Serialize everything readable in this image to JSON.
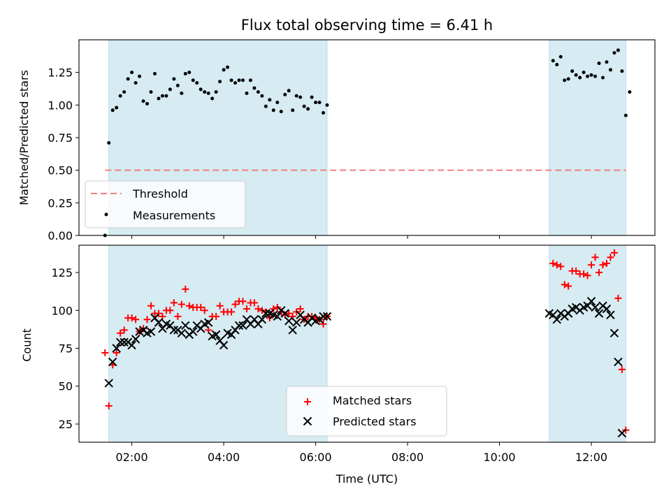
{
  "title": "Flux total observing time = 6.41 h",
  "xlabel": "Time (UTC)",
  "x_ticks": [
    "02:00",
    "04:00",
    "06:00",
    "08:00",
    "10:00",
    "12:00"
  ],
  "chart_data": [
    {
      "type": "scatter",
      "ylabel": "Matched/Predicted stars",
      "xlim": [
        "00:51",
        "13:23"
      ],
      "ylim": [
        0,
        1.5
      ],
      "y_ticks": [
        "0.00",
        "0.25",
        "0.50",
        "0.75",
        "1.00",
        "1.25"
      ],
      "observing_windows": [
        [
          "01:30",
          "06:15"
        ],
        [
          "11:05",
          "12:45"
        ]
      ],
      "threshold": {
        "name": "Threshold",
        "value": 0.5,
        "x_range": [
          "01:25",
          "12:45"
        ],
        "color": "#f08080"
      },
      "series": [
        {
          "name": "Measurements",
          "color": "#000000",
          "points": [
            [
              "01:25",
              0.0
            ],
            [
              "01:30",
              0.71
            ],
            [
              "01:35",
              0.96
            ],
            [
              "01:40",
              0.98
            ],
            [
              "01:45",
              1.07
            ],
            [
              "01:50",
              1.1
            ],
            [
              "01:55",
              1.2
            ],
            [
              "02:00",
              1.25
            ],
            [
              "02:05",
              1.17
            ],
            [
              "02:10",
              1.22
            ],
            [
              "02:15",
              1.03
            ],
            [
              "02:20",
              1.01
            ],
            [
              "02:25",
              1.1
            ],
            [
              "02:30",
              1.24
            ],
            [
              "02:35",
              1.05
            ],
            [
              "02:40",
              1.07
            ],
            [
              "02:45",
              1.07
            ],
            [
              "02:50",
              1.12
            ],
            [
              "02:55",
              1.2
            ],
            [
              "03:00",
              1.15
            ],
            [
              "03:05",
              1.09
            ],
            [
              "03:10",
              1.24
            ],
            [
              "03:15",
              1.25
            ],
            [
              "03:20",
              1.19
            ],
            [
              "03:25",
              1.17
            ],
            [
              "03:30",
              1.12
            ],
            [
              "03:35",
              1.1
            ],
            [
              "03:40",
              1.09
            ],
            [
              "03:45",
              1.05
            ],
            [
              "03:50",
              1.1
            ],
            [
              "03:55",
              1.18
            ],
            [
              "04:00",
              1.27
            ],
            [
              "04:05",
              1.29
            ],
            [
              "04:10",
              1.19
            ],
            [
              "04:15",
              1.17
            ],
            [
              "04:20",
              1.19
            ],
            [
              "04:25",
              1.19
            ],
            [
              "04:30",
              1.09
            ],
            [
              "04:35",
              1.19
            ],
            [
              "04:40",
              1.13
            ],
            [
              "04:45",
              1.1
            ],
            [
              "04:50",
              1.07
            ],
            [
              "04:55",
              0.99
            ],
            [
              "05:00",
              1.04
            ],
            [
              "05:05",
              0.96
            ],
            [
              "05:10",
              1.02
            ],
            [
              "05:15",
              0.95
            ],
            [
              "05:20",
              1.08
            ],
            [
              "05:25",
              1.11
            ],
            [
              "05:30",
              0.96
            ],
            [
              "05:35",
              1.07
            ],
            [
              "05:40",
              1.06
            ],
            [
              "05:45",
              0.99
            ],
            [
              "05:50",
              0.97
            ],
            [
              "05:55",
              1.06
            ],
            [
              "06:00",
              1.02
            ],
            [
              "06:05",
              1.02
            ],
            [
              "06:10",
              0.94
            ],
            [
              "06:15",
              1.0
            ],
            [
              "11:10",
              1.34
            ],
            [
              "11:15",
              1.31
            ],
            [
              "11:20",
              1.37
            ],
            [
              "11:25",
              1.19
            ],
            [
              "11:30",
              1.2
            ],
            [
              "11:35",
              1.26
            ],
            [
              "11:40",
              1.23
            ],
            [
              "11:45",
              1.21
            ],
            [
              "11:50",
              1.25
            ],
            [
              "11:55",
              1.22
            ],
            [
              "12:00",
              1.23
            ],
            [
              "12:05",
              1.22
            ],
            [
              "12:10",
              1.32
            ],
            [
              "12:15",
              1.21
            ],
            [
              "12:20",
              1.33
            ],
            [
              "12:25",
              1.27
            ],
            [
              "12:30",
              1.4
            ],
            [
              "12:35",
              1.42
            ],
            [
              "12:40",
              1.26
            ],
            [
              "12:45",
              0.92
            ],
            [
              "12:50",
              1.1
            ]
          ]
        }
      ],
      "legend": {
        "location": "lower-left",
        "entries": [
          "Threshold",
          "Measurements"
        ]
      }
    },
    {
      "type": "scatter",
      "ylabel": "Count",
      "xlim": [
        "00:51",
        "13:23"
      ],
      "ylim": [
        13,
        143
      ],
      "y_ticks": [
        "25",
        "50",
        "75",
        "100",
        "125"
      ],
      "observing_windows": [
        [
          "01:30",
          "06:15"
        ],
        [
          "11:05",
          "12:45"
        ]
      ],
      "series": [
        {
          "name": "Matched stars",
          "color": "#ff0000",
          "marker": "plus",
          "points": [
            [
              "01:25",
              72
            ],
            [
              "01:30",
              37
            ],
            [
              "01:35",
              64
            ],
            [
              "01:40",
              72
            ],
            [
              "01:45",
              85
            ],
            [
              "01:50",
              87
            ],
            [
              "01:55",
              95
            ],
            [
              "02:00",
              95
            ],
            [
              "02:05",
              94
            ],
            [
              "02:10",
              86
            ],
            [
              "02:15",
              88
            ],
            [
              "02:20",
              94
            ],
            [
              "02:25",
              103
            ],
            [
              "02:30",
              98
            ],
            [
              "02:35",
              98
            ],
            [
              "02:40",
              96
            ],
            [
              "02:45",
              100
            ],
            [
              "02:50",
              100
            ],
            [
              "02:55",
              105
            ],
            [
              "03:00",
              96
            ],
            [
              "03:05",
              104
            ],
            [
              "03:10",
              114
            ],
            [
              "03:15",
              103
            ],
            [
              "03:20",
              102
            ],
            [
              "03:25",
              102
            ],
            [
              "03:30",
              102
            ],
            [
              "03:35",
              100
            ],
            [
              "03:40",
              87
            ],
            [
              "03:45",
              96
            ],
            [
              "03:50",
              96
            ],
            [
              "03:55",
              103
            ],
            [
              "04:00",
              99
            ],
            [
              "04:05",
              99
            ],
            [
              "04:10",
              99
            ],
            [
              "04:15",
              104
            ],
            [
              "04:20",
              106
            ],
            [
              "04:25",
              106
            ],
            [
              "04:30",
              101
            ],
            [
              "04:35",
              105
            ],
            [
              "04:40",
              105
            ],
            [
              "04:45",
              101
            ],
            [
              "04:50",
              100
            ],
            [
              "04:55",
              99
            ],
            [
              "05:00",
              95
            ],
            [
              "05:05",
              101
            ],
            [
              "05:10",
              102
            ],
            [
              "05:15",
              99
            ],
            [
              "05:20",
              97
            ],
            [
              "05:25",
              98
            ],
            [
              "05:30",
              96
            ],
            [
              "05:35",
              99
            ],
            [
              "05:40",
              101
            ],
            [
              "05:45",
              94
            ],
            [
              "05:50",
              96
            ],
            [
              "05:55",
              96
            ],
            [
              "06:00",
              95
            ],
            [
              "06:05",
              94
            ],
            [
              "06:10",
              91
            ],
            [
              "06:15",
              96
            ],
            [
              "11:10",
              131
            ],
            [
              "11:15",
              130
            ],
            [
              "11:20",
              129
            ],
            [
              "11:25",
              117
            ],
            [
              "11:30",
              116
            ],
            [
              "11:35",
              126
            ],
            [
              "11:40",
              126
            ],
            [
              "11:45",
              124
            ],
            [
              "11:50",
              124
            ],
            [
              "11:55",
              123
            ],
            [
              "12:00",
              130
            ],
            [
              "12:05",
              135
            ],
            [
              "12:10",
              125
            ],
            [
              "12:15",
              130
            ],
            [
              "12:20",
              131
            ],
            [
              "12:25",
              135
            ],
            [
              "12:30",
              138
            ],
            [
              "12:35",
              108
            ],
            [
              "12:40",
              61
            ],
            [
              "12:45",
              21
            ]
          ]
        },
        {
          "name": "Predicted stars",
          "color": "#000000",
          "marker": "x",
          "points": [
            [
              "01:30",
              52
            ],
            [
              "01:35",
              66
            ],
            [
              "01:40",
              75
            ],
            [
              "01:45",
              79
            ],
            [
              "01:50",
              79
            ],
            [
              "01:55",
              79
            ],
            [
              "02:00",
              77
            ],
            [
              "02:05",
              81
            ],
            [
              "02:10",
              86
            ],
            [
              "02:15",
              87
            ],
            [
              "02:20",
              85
            ],
            [
              "02:25",
              86
            ],
            [
              "02:30",
              95
            ],
            [
              "02:35",
              92
            ],
            [
              "02:40",
              88
            ],
            [
              "02:45",
              91
            ],
            [
              "02:50",
              90
            ],
            [
              "02:55",
              87
            ],
            [
              "03:00",
              87
            ],
            [
              "03:05",
              85
            ],
            [
              "03:10",
              90
            ],
            [
              "03:15",
              84
            ],
            [
              "03:20",
              86
            ],
            [
              "03:25",
              90
            ],
            [
              "03:30",
              88
            ],
            [
              "03:35",
              91
            ],
            [
              "03:40",
              92
            ],
            [
              "03:45",
              83
            ],
            [
              "03:50",
              84
            ],
            [
              "03:55",
              80
            ],
            [
              "04:00",
              77
            ],
            [
              "04:05",
              85
            ],
            [
              "04:10",
              84
            ],
            [
              "04:15",
              87
            ],
            [
              "04:20",
              90
            ],
            [
              "04:25",
              90
            ],
            [
              "04:30",
              94
            ],
            [
              "04:35",
              91
            ],
            [
              "04:40",
              94
            ],
            [
              "04:45",
              91
            ],
            [
              "04:50",
              94
            ],
            [
              "04:55",
              98
            ],
            [
              "05:00",
              98
            ],
            [
              "05:05",
              97
            ],
            [
              "05:10",
              96
            ],
            [
              "05:15",
              100
            ],
            [
              "05:20",
              98
            ],
            [
              "05:25",
              93
            ],
            [
              "05:30",
              87
            ],
            [
              "05:35",
              92
            ],
            [
              "05:40",
              97
            ],
            [
              "05:45",
              94
            ],
            [
              "05:50",
              92
            ],
            [
              "05:55",
              95
            ],
            [
              "06:00",
              93
            ],
            [
              "06:05",
              94
            ],
            [
              "06:10",
              96
            ],
            [
              "06:15",
              96
            ],
            [
              "11:05",
              98
            ],
            [
              "11:10",
              97
            ],
            [
              "11:15",
              94
            ],
            [
              "11:20",
              98
            ],
            [
              "11:25",
              96
            ],
            [
              "11:30",
              98
            ],
            [
              "11:35",
              101
            ],
            [
              "11:40",
              102
            ],
            [
              "11:45",
              100
            ],
            [
              "11:50",
              102
            ],
            [
              "11:55",
              103
            ],
            [
              "12:00",
              106
            ],
            [
              "12:05",
              102
            ],
            [
              "12:10",
              98
            ],
            [
              "12:15",
              103
            ],
            [
              "12:20",
              101
            ],
            [
              "12:25",
              97
            ],
            [
              "12:30",
              85
            ],
            [
              "12:35",
              66
            ],
            [
              "12:40",
              19
            ]
          ]
        }
      ],
      "legend": {
        "location": "lower-center",
        "entries": [
          "Matched stars",
          "Predicted stars"
        ]
      }
    }
  ]
}
